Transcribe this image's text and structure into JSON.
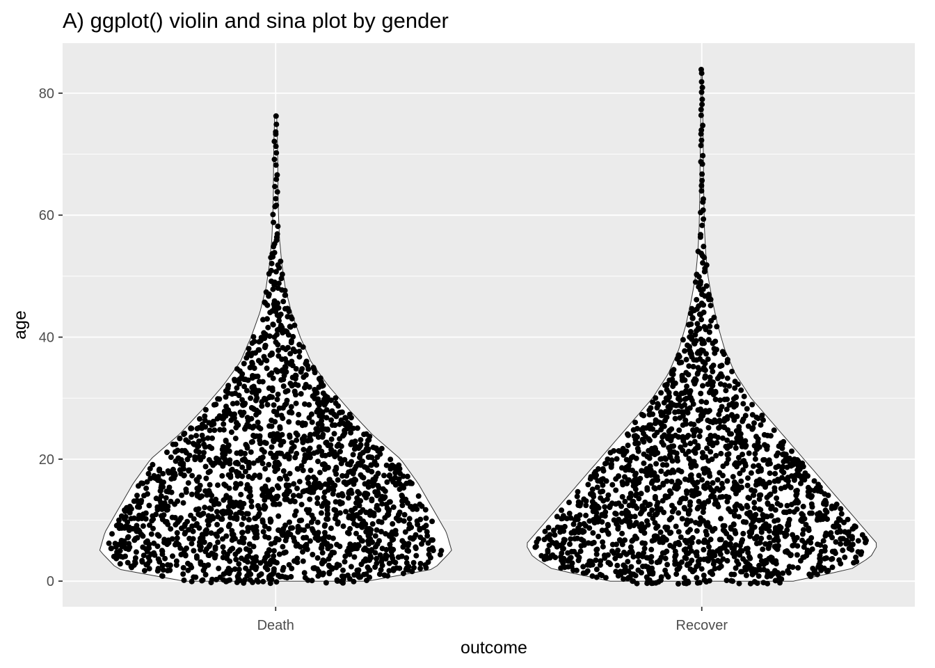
{
  "chart_data": {
    "type": "violin",
    "title": "A) ggplot() violin and sina plot by gender",
    "xlabel": "outcome",
    "ylabel": "age",
    "categories": [
      "Death",
      "Recover"
    ],
    "ylim": [
      -4.2,
      88.2
    ],
    "yticks": [
      0,
      20,
      40,
      60,
      80
    ],
    "grid": true,
    "legend": "none",
    "colors": {
      "panel_background": "#ebebeb",
      "grid_line": "#ffffff",
      "violin_fill": "#ffffff",
      "violin_outline": "#333333",
      "points": "#000000",
      "tick_text": "#4d4d4d",
      "tick_mark": "#333333"
    },
    "series": [
      {
        "category": "Death",
        "age_range": [
          0,
          76
        ],
        "density_profile": [
          [
            0,
            0.52
          ],
          [
            2,
            0.9
          ],
          [
            5,
            1.0
          ],
          [
            8,
            0.97
          ],
          [
            12,
            0.89
          ],
          [
            16,
            0.81
          ],
          [
            20,
            0.71
          ],
          [
            24,
            0.55
          ],
          [
            28,
            0.42
          ],
          [
            32,
            0.3
          ],
          [
            36,
            0.2
          ],
          [
            40,
            0.14
          ],
          [
            44,
            0.09
          ],
          [
            48,
            0.055
          ],
          [
            52,
            0.035
          ],
          [
            56,
            0.022
          ],
          [
            60,
            0.016
          ],
          [
            64,
            0.013
          ],
          [
            68,
            0.012
          ],
          [
            72,
            0.01
          ],
          [
            76,
            0.006
          ]
        ],
        "approx_point_count": 1900
      },
      {
        "category": "Recover",
        "age_range": [
          0,
          84
        ],
        "density_profile": [
          [
            0,
            0.52
          ],
          [
            2,
            0.85
          ],
          [
            4,
            0.96
          ],
          [
            6,
            1.0
          ],
          [
            10,
            0.88
          ],
          [
            14,
            0.76
          ],
          [
            18,
            0.64
          ],
          [
            22,
            0.52
          ],
          [
            26,
            0.4
          ],
          [
            30,
            0.28
          ],
          [
            34,
            0.19
          ],
          [
            38,
            0.13
          ],
          [
            42,
            0.09
          ],
          [
            46,
            0.06
          ],
          [
            50,
            0.035
          ],
          [
            54,
            0.022
          ],
          [
            58,
            0.015
          ],
          [
            62,
            0.012
          ],
          [
            66,
            0.01
          ],
          [
            70,
            0.009
          ],
          [
            76,
            0.006
          ],
          [
            80,
            0.004
          ],
          [
            84,
            0.003
          ]
        ],
        "approx_point_count": 1750
      }
    ]
  }
}
